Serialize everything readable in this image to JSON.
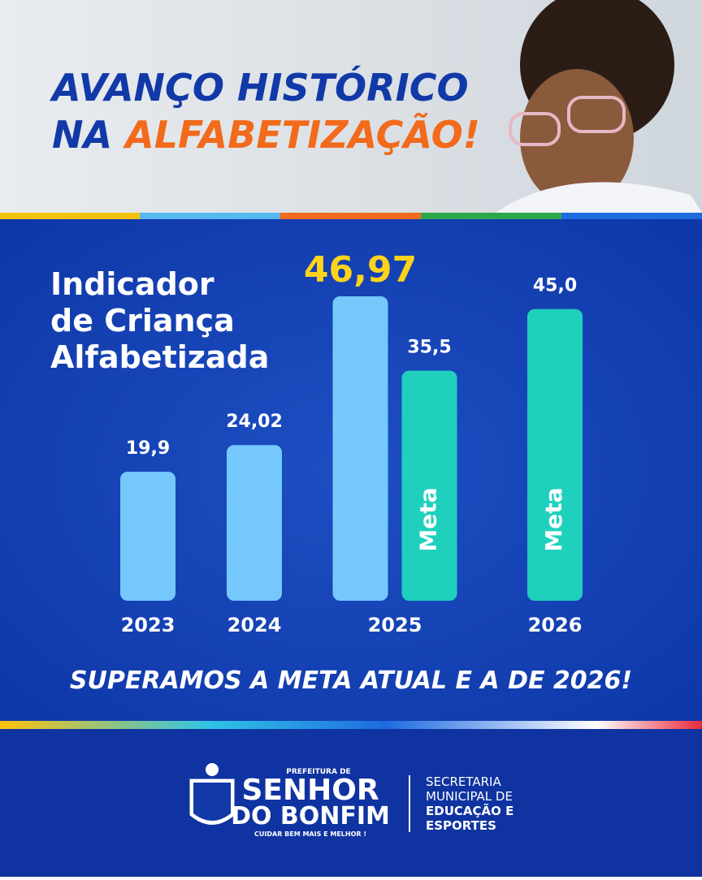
{
  "header": {
    "title_line1": "AVANÇO HISTÓRICO",
    "title_line2_a": "NA",
    "title_line2_b": "ALFABETIZAÇÃO!"
  },
  "chart_data": {
    "type": "bar",
    "title_lines": [
      "Indicador",
      "de Criança",
      "Alfabetizada"
    ],
    "categories": [
      "2023",
      "2024",
      "2025",
      "2026"
    ],
    "series": [
      {
        "color": "#74c8fb",
        "values": [
          19.9,
          24.02,
          46.97,
          null
        ],
        "value_labels": [
          "19,9",
          "24,02",
          "46,97",
          null
        ]
      },
      {
        "name": "Meta",
        "color": "#1fd1bd",
        "values": [
          null,
          null,
          35.5,
          45.0
        ],
        "value_labels": [
          null,
          null,
          "35,5",
          "45,0"
        ]
      }
    ]
  },
  "footer": {
    "message": "SUPERAMOS A META ATUAL E A DE 2026!",
    "logo": {
      "top": "PREFEITURA DE",
      "line1": "SENHOR",
      "line2": "DO BONFIM",
      "slogan": "CUIDAR BEM MAIS E MELHOR !"
    },
    "department": [
      "SECRETARIA",
      "MUNICIPAL DE",
      "EDUCAÇÃO E",
      "ESPORTES"
    ]
  }
}
